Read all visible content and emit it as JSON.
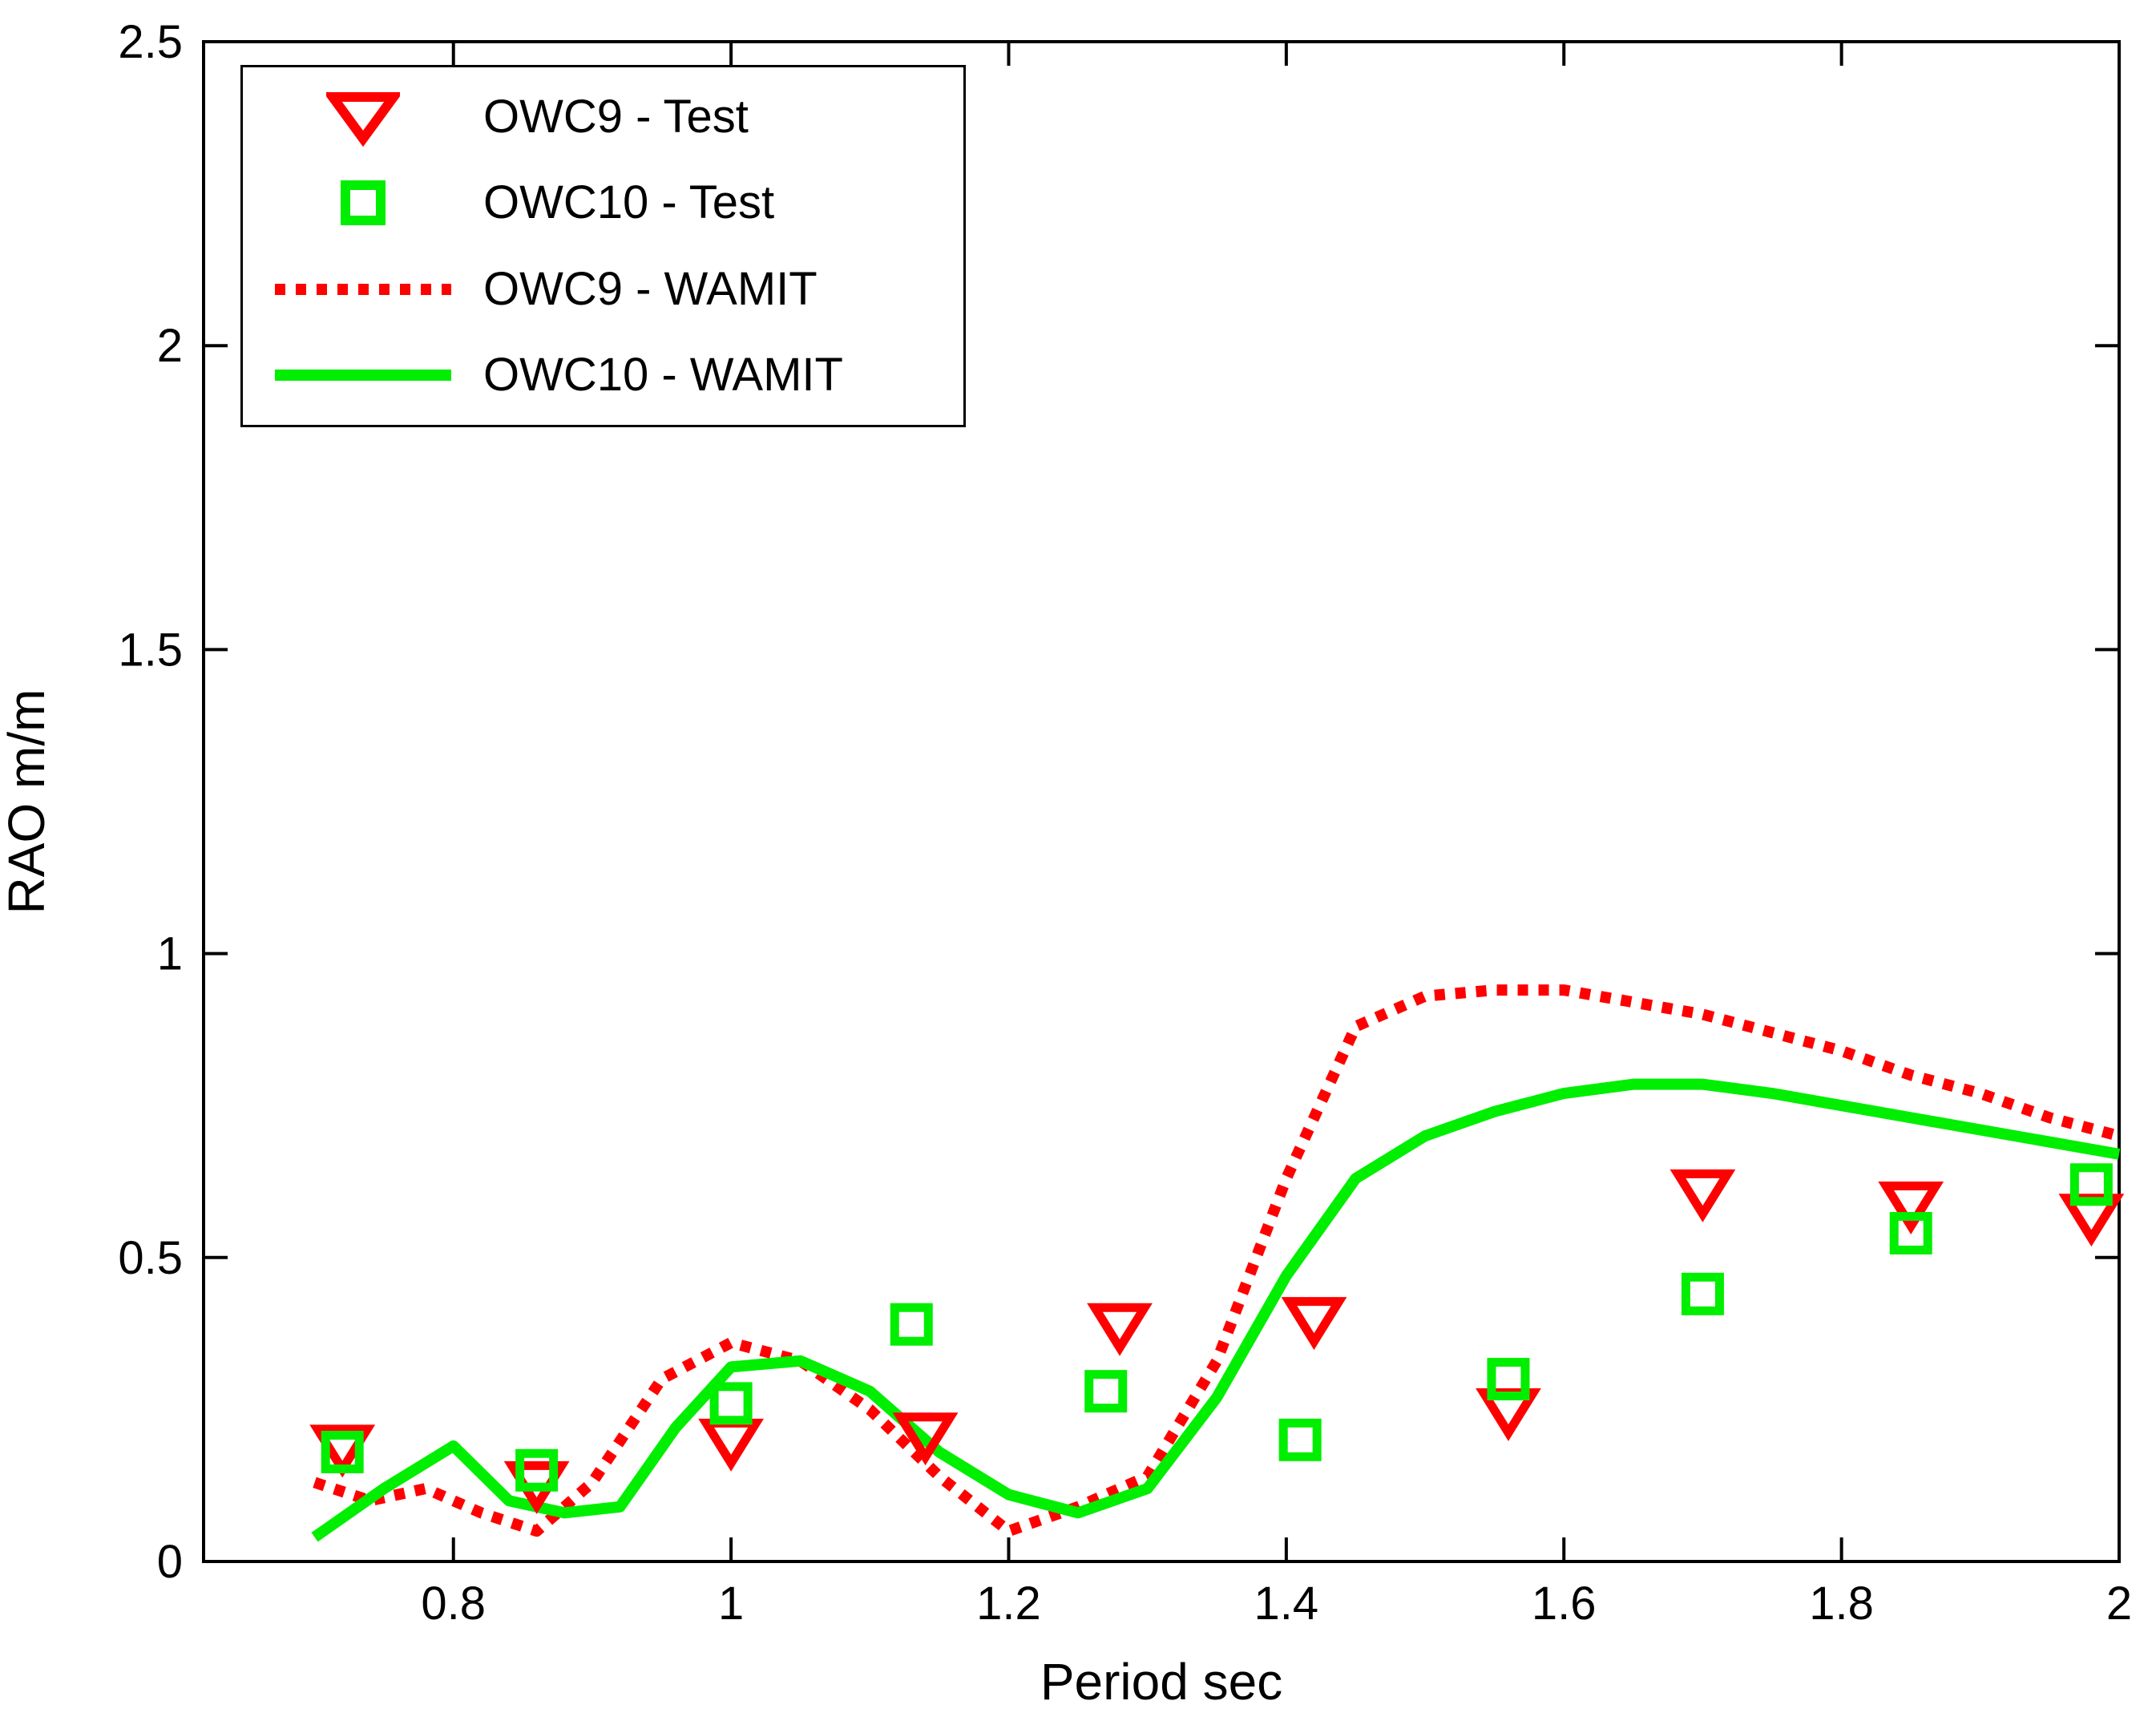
{
  "figure": {
    "background": "#FFFFFF",
    "axis_color": "#000000"
  },
  "chart_data": {
    "type": "line",
    "title": "",
    "xlabel": "Period sec",
    "ylabel": "RAO m/m",
    "xlim": [
      0.62,
      2.0
    ],
    "ylim": [
      0,
      2.5
    ],
    "xticks": [
      0.8,
      1,
      1.2,
      1.4,
      1.6,
      1.8,
      2
    ],
    "yticks": [
      0,
      0.5,
      1,
      1.5,
      2,
      2.5
    ],
    "grid": false,
    "legend_position": "top-left",
    "series": [
      {
        "name": "OWC9 - Test",
        "type": "scatter",
        "marker": "triangle-down",
        "color": "#FF0000",
        "x": [
          0.72,
          0.86,
          1.0,
          1.14,
          1.28,
          1.42,
          1.56,
          1.7,
          1.85,
          1.98
        ],
        "y": [
          0.19,
          0.13,
          0.2,
          0.21,
          0.39,
          0.4,
          0.25,
          0.61,
          0.59,
          0.57
        ]
      },
      {
        "name": "OWC10 - Test",
        "type": "scatter",
        "marker": "square",
        "color": "#00EE00",
        "x": [
          0.72,
          0.86,
          1.0,
          1.13,
          1.27,
          1.41,
          1.56,
          1.7,
          1.85,
          1.98
        ],
        "y": [
          0.18,
          0.15,
          0.26,
          0.39,
          0.28,
          0.2,
          0.3,
          0.44,
          0.54,
          0.62
        ]
      },
      {
        "name": "OWC9 - WAMIT",
        "type": "line",
        "style": "dotted",
        "color": "#FF0000",
        "x": [
          0.7,
          0.74,
          0.78,
          0.82,
          0.86,
          0.9,
          0.95,
          1.0,
          1.05,
          1.1,
          1.15,
          1.2,
          1.25,
          1.3,
          1.35,
          1.4,
          1.45,
          1.5,
          1.55,
          1.6,
          1.65,
          1.7,
          1.75,
          1.8,
          1.85,
          1.9,
          1.95,
          2.0
        ],
        "y": [
          0.13,
          0.1,
          0.12,
          0.08,
          0.05,
          0.13,
          0.3,
          0.36,
          0.33,
          0.25,
          0.14,
          0.05,
          0.09,
          0.14,
          0.33,
          0.63,
          0.88,
          0.93,
          0.94,
          0.94,
          0.92,
          0.9,
          0.87,
          0.84,
          0.8,
          0.77,
          0.73,
          0.7
        ]
      },
      {
        "name": "OWC10 - WAMIT",
        "type": "line",
        "style": "solid",
        "color": "#00EE00",
        "x": [
          0.7,
          0.75,
          0.8,
          0.84,
          0.88,
          0.92,
          0.96,
          1.0,
          1.05,
          1.1,
          1.15,
          1.2,
          1.25,
          1.3,
          1.35,
          1.4,
          1.45,
          1.5,
          1.55,
          1.6,
          1.65,
          1.7,
          1.75,
          1.8,
          1.85,
          1.9,
          1.95,
          2.0
        ],
        "y": [
          0.04,
          0.12,
          0.19,
          0.1,
          0.08,
          0.09,
          0.22,
          0.32,
          0.33,
          0.28,
          0.18,
          0.11,
          0.08,
          0.12,
          0.27,
          0.47,
          0.63,
          0.7,
          0.74,
          0.77,
          0.785,
          0.785,
          0.77,
          0.75,
          0.73,
          0.71,
          0.69,
          0.67
        ]
      }
    ]
  }
}
